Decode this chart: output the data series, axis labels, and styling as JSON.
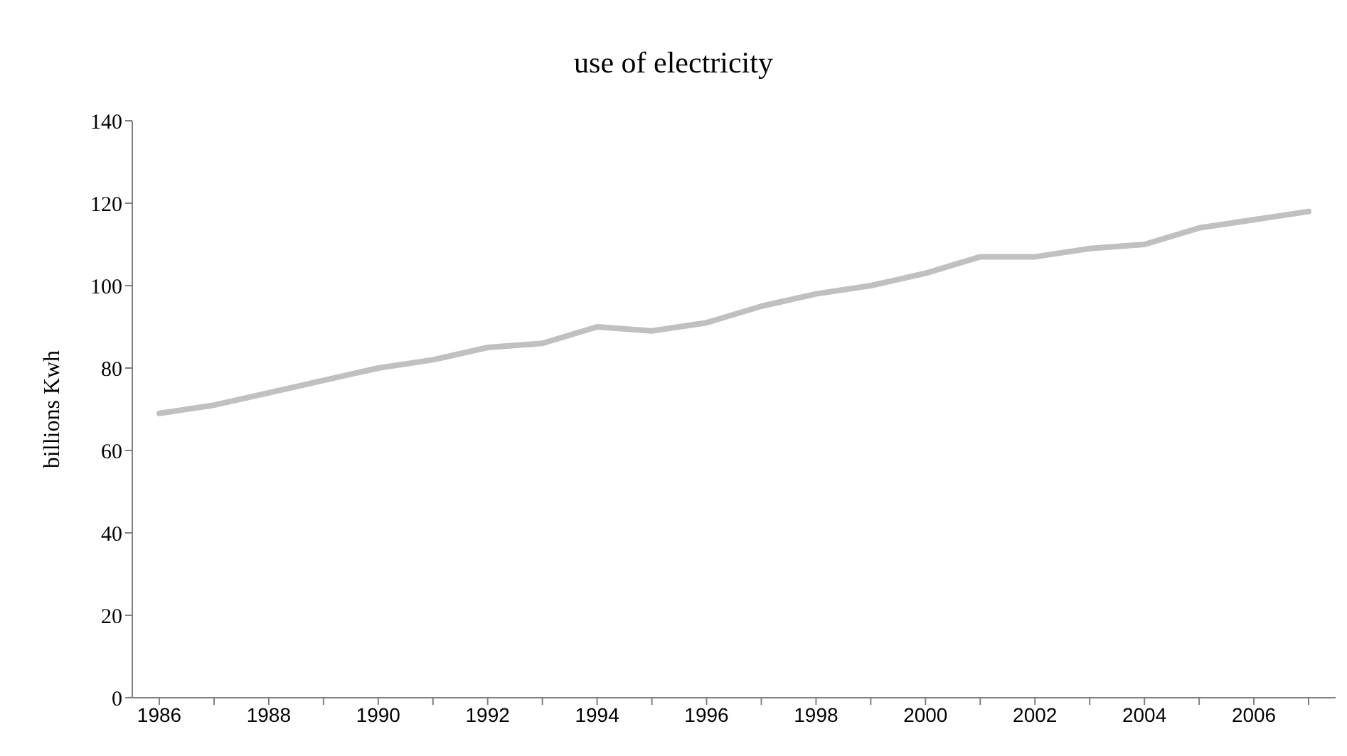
{
  "chart_data": {
    "type": "line",
    "title": "use of electricity",
    "ylabel": "billions Kwh",
    "categories": [
      "1986",
      null,
      "1988",
      null,
      "1990",
      null,
      "1992",
      null,
      "1994",
      null,
      "1996",
      null,
      "1998",
      null,
      "2000",
      null,
      "2002",
      null,
      "2004",
      null,
      "2006",
      null
    ],
    "series": [
      {
        "color": "#c0c0c0",
        "values": [
          69,
          71,
          74,
          77,
          80,
          82,
          85,
          86,
          90,
          89,
          91,
          95,
          98,
          100,
          103,
          107,
          107,
          109,
          110,
          114,
          116,
          118
        ]
      }
    ],
    "ylim": [
      0,
      140
    ],
    "yticks": [
      0,
      20,
      40,
      60,
      80,
      100,
      120,
      140
    ],
    "grid": false,
    "legend": false,
    "marker": "none",
    "line_style": "solid"
  }
}
